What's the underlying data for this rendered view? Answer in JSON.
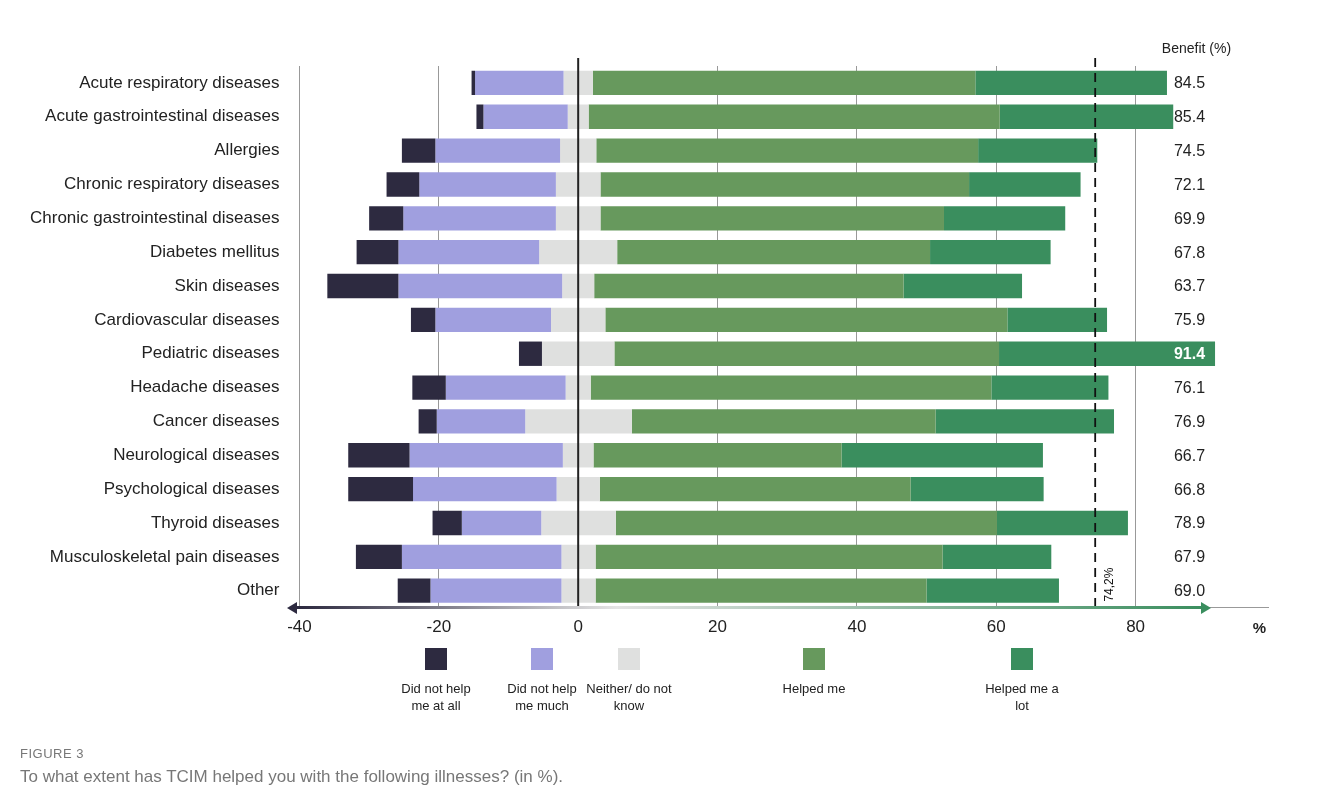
{
  "chart_data": {
    "type": "bar",
    "orientation": "horizontal",
    "title": "FIGURE 3",
    "subtitle": "To what extent has TCIM helped you with the following illnesses? (in %).",
    "xlabel": "%",
    "categories": [
      "Acute respiratory diseases",
      "Acute gastrointestinal diseases",
      "Allergies",
      "Chronic respiratory diseases",
      "Chronic gastrointestinal diseases",
      "Diabetes mellitus",
      "Skin diseases",
      "Cardiovascular diseases",
      "Pediatric diseases",
      "Headache diseases",
      "Cancer diseases",
      "Neurological diseases",
      "Psychological diseases",
      "Thyroid diseases",
      "Musculoskeletal pain diseases",
      "Other"
    ],
    "series": [
      {
        "name": "Did not help me at all",
        "color": "#2d2a40",
        "base": [
          -15.3,
          -14.6,
          -25.3,
          -27.5,
          -30.0,
          -31.8,
          -36.0,
          -24.0,
          -8.5,
          -23.8,
          -22.9,
          -33.0,
          -33.0,
          -20.9,
          -31.9,
          -25.9
        ],
        "values": [
          0.5,
          1.0,
          4.8,
          4.7,
          4.9,
          6.0,
          10.2,
          3.5,
          3.3,
          4.8,
          2.6,
          8.8,
          9.3,
          4.2,
          6.6,
          4.7
        ]
      },
      {
        "name": "Did not help me much",
        "color": "#a09fdf",
        "base": [
          -14.8,
          -13.6,
          -20.5,
          -22.8,
          -25.1,
          -25.8,
          -25.8,
          -20.5,
          null,
          -19.0,
          -20.3,
          -24.2,
          -23.7,
          -16.7,
          -25.3,
          -21.2
        ],
        "values": [
          12.7,
          12.1,
          17.9,
          19.6,
          21.9,
          20.2,
          23.5,
          16.6,
          null,
          17.2,
          12.7,
          22.0,
          20.6,
          11.4,
          22.9,
          18.8
        ]
      },
      {
        "name": "Neither/ do not know",
        "color": "#dfe0df",
        "base": [
          -2.1,
          -1.5,
          -2.6,
          -3.2,
          -3.2,
          -5.6,
          -2.3,
          -3.9,
          -5.2,
          -1.8,
          -7.6,
          -2.2,
          -3.1,
          -5.3,
          -2.4,
          -2.4
        ],
        "values": [
          4.2,
          3.0,
          5.2,
          6.4,
          6.4,
          11.2,
          4.6,
          7.8,
          10.4,
          3.6,
          15.3,
          4.4,
          6.2,
          10.7,
          4.9,
          4.9
        ]
      },
      {
        "name": "Helped me",
        "color": "#67995d",
        "base": [
          2.1,
          1.5,
          2.6,
          3.2,
          3.2,
          5.6,
          2.3,
          3.9,
          5.2,
          1.8,
          7.7,
          2.2,
          3.1,
          5.4,
          2.5,
          2.5
        ],
        "values": [
          54.9,
          59.0,
          54.8,
          52.9,
          49.3,
          44.9,
          44.4,
          57.7,
          55.2,
          57.5,
          43.6,
          35.6,
          44.6,
          54.7,
          49.8,
          47.5
        ]
      },
      {
        "name": "Helped me a lot",
        "color": "#3a8e5e",
        "base": [
          57.0,
          60.5,
          57.4,
          56.1,
          52.5,
          50.5,
          46.7,
          61.6,
          60.4,
          59.3,
          51.3,
          37.8,
          47.7,
          60.1,
          52.3,
          50.0
        ],
        "values": [
          27.5,
          24.9,
          17.1,
          16.0,
          17.4,
          17.3,
          17.0,
          14.3,
          31.0,
          16.8,
          25.6,
          28.9,
          19.1,
          18.8,
          15.6,
          19.0
        ]
      }
    ],
    "annotations": [
      "Benefit (%)",
      "84.5",
      "85.4",
      "74.5",
      "72.1",
      "69.9",
      "67.8",
      "63.7",
      "75.9",
      "91.4",
      "76.1",
      "76.9",
      "66.7",
      "66.8",
      "78.9",
      "67.9",
      "69.0"
    ],
    "xlim": [
      -40,
      99
    ],
    "xticks": [
      -40,
      -20,
      0,
      20,
      40,
      60,
      80
    ],
    "grid": "x",
    "legend": "bottom",
    "ref_lines": [
      {
        "axis": "x",
        "value": 0,
        "color": "#222222",
        "line_style": "solid"
      },
      {
        "axis": "x",
        "value": 74.2,
        "label": "74,2%",
        "color": "#111111",
        "line_style": "dashed"
      }
    ]
  }
}
